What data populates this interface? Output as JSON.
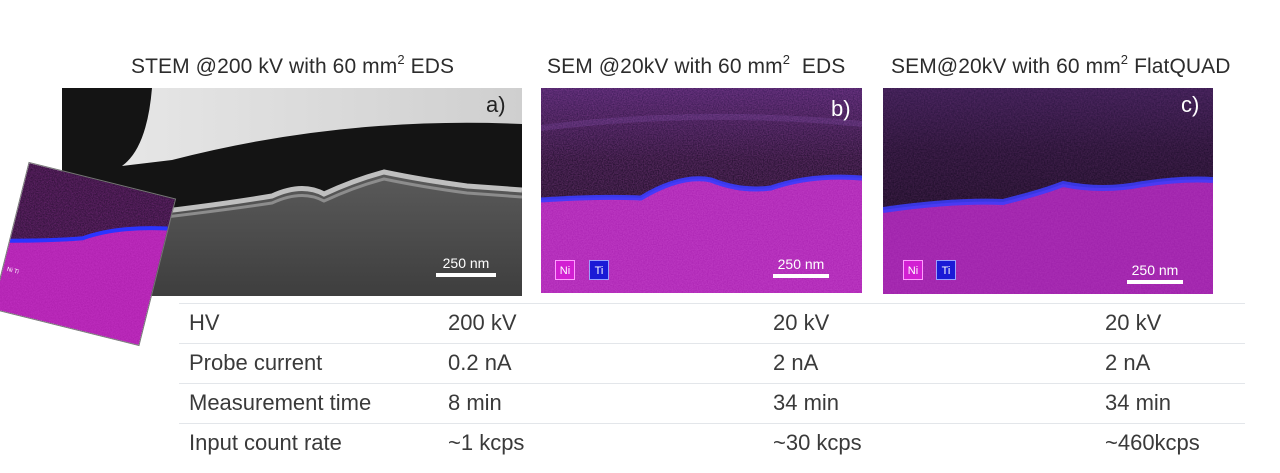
{
  "headings": {
    "stem_prefix": "STEM @200 kV with 60 mm",
    "stem_sup": "2",
    "stem_suffix": " EDS",
    "sem_eds_prefix": "SEM @20kV with 60 mm",
    "sem_eds_sup": "2",
    "sem_eds_suffix": "  EDS",
    "sem_fq_prefix": "SEM@20kV with 60 mm",
    "sem_fq_sup": "2",
    "sem_fq_suffix": " FlatQUAD"
  },
  "panels": {
    "a_letter": "a)",
    "b_letter": "b)",
    "c_letter": "c)",
    "scale_label": "250 nm",
    "legend_ni": "Ni",
    "legend_ti": "Ti",
    "inset_legend": "Ni Ti"
  },
  "colors": {
    "nickel": "#d21fd2",
    "titanium": "#1a1ad6",
    "background": "#ffffff"
  },
  "table": {
    "rows": [
      {
        "label": "HV",
        "values": [
          "200 kV",
          "20 kV",
          "20 kV"
        ]
      },
      {
        "label": "Probe current",
        "values": [
          "0.2 nA",
          "2 nA",
          "2 nA"
        ]
      },
      {
        "label": "Measurement time",
        "values": [
          "8 min",
          "34 min",
          "34 min"
        ]
      },
      {
        "label": "Input count rate",
        "values": [
          "~1 kcps",
          "~30 kcps",
          "~460kcps"
        ]
      }
    ]
  }
}
